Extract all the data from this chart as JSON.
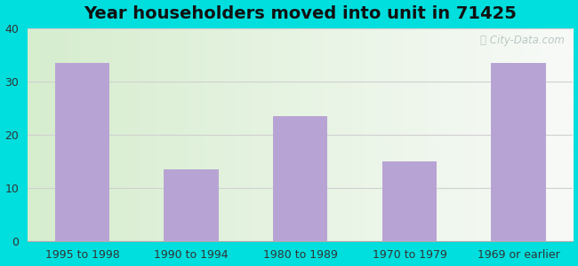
{
  "title": "Year householders moved into unit in 71425",
  "categories": [
    "1995 to 1998",
    "1990 to 1994",
    "1980 to 1989",
    "1970 to 1979",
    "1969 or earlier"
  ],
  "values": [
    33.5,
    13.5,
    23.5,
    15.0,
    33.5
  ],
  "bar_color": "#b8a4d4",
  "ylim": [
    0,
    40
  ],
  "yticks": [
    0,
    10,
    20,
    30,
    40
  ],
  "background_outer": "#00dede",
  "bg_color_left": "#d6edce",
  "bg_color_right": "#f0f4f0",
  "title_fontsize": 14,
  "tick_fontsize": 9,
  "grid_color": "#d0d0d0",
  "watermark_text": "City-Data.com",
  "watermark_color": "#b0bfbf"
}
